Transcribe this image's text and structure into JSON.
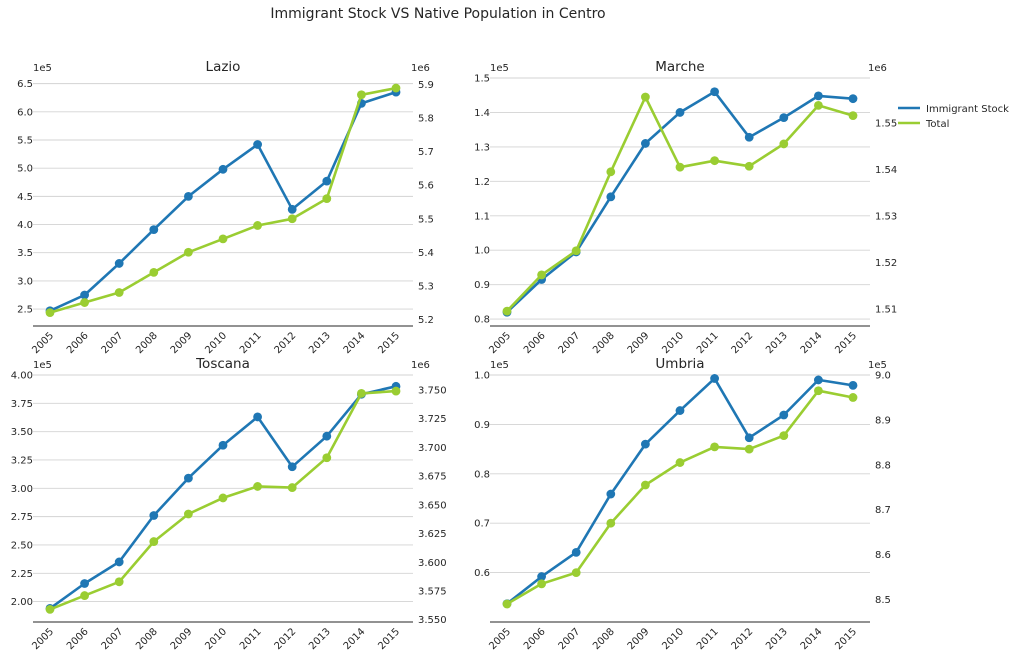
{
  "figure": {
    "title": "Immigrant Stock VS Native Population in Centro",
    "legend": {
      "placement": "right",
      "items": [
        {
          "label": "Immigrant Stock",
          "color": "#1f77b4"
        },
        {
          "label": "Total",
          "color": "#9acd32"
        }
      ]
    }
  },
  "chart_data": [
    {
      "type": "line",
      "title": "Lazio",
      "x": [
        "2005",
        "2006",
        "2007",
        "2008",
        "2009",
        "2010",
        "2011",
        "2012",
        "2013",
        "2014",
        "2015"
      ],
      "xlabel": "",
      "ylabel": "",
      "left_axis": {
        "ylim": [
          2.2,
          6.6
        ],
        "ticks": [
          "2.5",
          "3.0",
          "3.5",
          "4.0",
          "4.5",
          "5.0",
          "5.5",
          "6.0",
          "6.5"
        ],
        "offset_label": "1e5"
      },
      "right_axis": {
        "ylim": [
          5.18,
          5.92
        ],
        "ticks": [
          "5.2",
          "5.3",
          "5.4",
          "5.5",
          "5.6",
          "5.7",
          "5.8",
          "5.9"
        ],
        "offset_label": "1e6"
      },
      "series": [
        {
          "name": "Immigrant Stock",
          "axis": "left",
          "color": "#1f77b4",
          "values": [
            2.47,
            2.75,
            3.31,
            3.91,
            4.5,
            4.98,
            5.42,
            4.27,
            4.77,
            6.15,
            6.35
          ]
        },
        {
          "name": "Total",
          "axis": "right",
          "color": "#9acd32",
          "values": [
            5.22,
            5.25,
            5.28,
            5.34,
            5.4,
            5.44,
            5.48,
            5.5,
            5.56,
            5.87,
            5.89
          ]
        }
      ]
    },
    {
      "type": "line",
      "title": "Marche",
      "x": [
        "2005",
        "2006",
        "2007",
        "2008",
        "2009",
        "2010",
        "2011",
        "2012",
        "2013",
        "2014",
        "2015"
      ],
      "xlabel": "",
      "ylabel": "",
      "left_axis": {
        "ylim": [
          0.78,
          1.5
        ],
        "ticks": [
          "0.8",
          "0.9",
          "1.0",
          "1.1",
          "1.2",
          "1.3",
          "1.4",
          "1.5"
        ],
        "offset_label": "1e5"
      },
      "right_axis": {
        "ylim": [
          1.5063,
          1.5597
        ],
        "ticks": [
          "1.51",
          "1.52",
          "1.53",
          "1.54",
          "1.55"
        ],
        "offset_label": "1e6"
      },
      "series": [
        {
          "name": "Immigrant Stock",
          "axis": "left",
          "color": "#1f77b4",
          "values": [
            0.82,
            0.915,
            0.995,
            1.155,
            1.31,
            1.4,
            1.46,
            1.328,
            1.385,
            1.448,
            1.44
          ]
        },
        {
          "name": "Total",
          "axis": "right",
          "color": "#9acd32",
          "values": [
            1.5095,
            1.5173,
            1.5225,
            1.5395,
            1.5556,
            1.5405,
            1.5419,
            1.5407,
            1.5455,
            1.5538,
            1.5516
          ]
        }
      ]
    },
    {
      "type": "line",
      "title": "Toscana",
      "x": [
        "2005",
        "2006",
        "2007",
        "2008",
        "2009",
        "2010",
        "2011",
        "2012",
        "2013",
        "2014",
        "2015"
      ],
      "xlabel": "",
      "ylabel": "",
      "left_axis": {
        "ylim": [
          1.82,
          4.0
        ],
        "ticks": [
          "2.00",
          "2.25",
          "2.50",
          "2.75",
          "3.00",
          "3.25",
          "3.50",
          "3.75",
          "4.00"
        ],
        "offset_label": "1e5"
      },
      "right_axis": {
        "ylim": [
          3.548,
          3.763
        ],
        "ticks": [
          "3.550",
          "3.575",
          "3.600",
          "3.625",
          "3.650",
          "3.675",
          "3.700",
          "3.725",
          "3.750"
        ],
        "offset_label": "1e6"
      },
      "series": [
        {
          "name": "Immigrant Stock",
          "axis": "left",
          "color": "#1f77b4",
          "values": [
            1.94,
            2.16,
            2.35,
            2.76,
            3.09,
            3.38,
            3.63,
            3.19,
            3.46,
            3.83,
            3.9
          ]
        },
        {
          "name": "Total",
          "axis": "right",
          "color": "#9acd32",
          "values": [
            3.559,
            3.571,
            3.583,
            3.618,
            3.642,
            3.656,
            3.666,
            3.665,
            3.691,
            3.747,
            3.749
          ]
        }
      ]
    },
    {
      "type": "line",
      "title": "Umbria",
      "x": [
        "2005",
        "2006",
        "2007",
        "2008",
        "2009",
        "2010",
        "2011",
        "2012",
        "2013",
        "2014",
        "2015"
      ],
      "xlabel": "",
      "ylabel": "",
      "left_axis": {
        "ylim": [
          0.5,
          1.0
        ],
        "ticks": [
          "0.6",
          "0.7",
          "0.8",
          "0.9",
          "1.0"
        ],
        "offset_label": "1e5"
      },
      "right_axis": {
        "ylim": [
          8.45,
          9.0
        ],
        "ticks": [
          "8.5",
          "8.6",
          "8.7",
          "8.8",
          "8.9",
          "9.0"
        ],
        "offset_label": "1e5"
      },
      "series": [
        {
          "name": "Immigrant Stock",
          "axis": "left",
          "color": "#1f77b4",
          "values": [
            0.537,
            0.592,
            0.641,
            0.759,
            0.86,
            0.928,
            0.993,
            0.873,
            0.919,
            0.99,
            0.979
          ]
        },
        {
          "name": "Total",
          "axis": "right",
          "color": "#9acd32",
          "values": [
            8.49,
            8.535,
            8.56,
            8.67,
            8.755,
            8.805,
            8.84,
            8.835,
            8.865,
            8.965,
            8.95
          ]
        }
      ]
    }
  ]
}
